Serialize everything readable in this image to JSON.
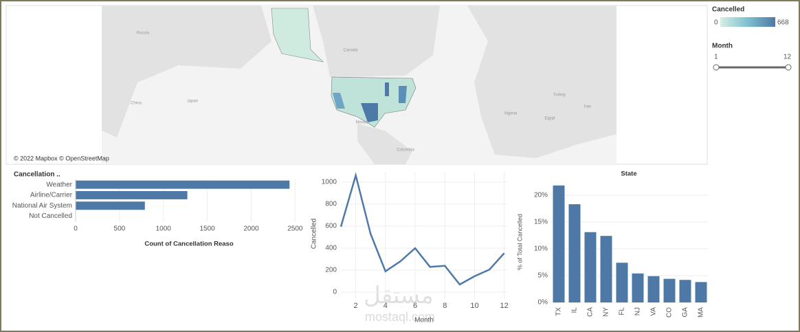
{
  "map": {
    "attribution": "© 2022 Mapbox © OpenStreetMap",
    "labels": [
      "Russia",
      "Canada",
      "China",
      "Japan",
      "Mexico",
      "Turkey",
      "Iran",
      "Egypt",
      "Algeria",
      "Colombia"
    ],
    "legend": {
      "title": "Cancelled",
      "min": 0,
      "max": 668
    }
  },
  "filter": {
    "title": "Month",
    "min": 1,
    "max": 12
  },
  "watermark": {
    "arabic": "مستقل",
    "latin": "mostaql.com"
  },
  "chart_data": [
    {
      "type": "hbar",
      "title": "Cancellation ..",
      "x_label": "Count of Cancellation Reaso",
      "categories": [
        "Weather",
        "Airline/Carrier",
        "National Air System",
        "Not Cancelled"
      ],
      "values": [
        2437,
        1273,
        789,
        0
      ],
      "color": "#4e79a7",
      "xlim": [
        0,
        2560
      ],
      "xticks": [
        0,
        500,
        1000,
        1500,
        2000,
        2500
      ],
      "grid": true
    },
    {
      "type": "line",
      "x_label": "Month",
      "y_label": "Cancelled",
      "x": [
        1,
        2,
        3,
        4,
        5,
        6,
        7,
        8,
        9,
        10,
        11,
        12
      ],
      "values": [
        595,
        1062,
        530,
        190,
        280,
        400,
        230,
        240,
        70,
        145,
        205,
        355
      ],
      "color": "#4e79a7",
      "xlim": [
        1,
        12.2
      ],
      "ylim": [
        -62,
        1094
      ],
      "xticks": [
        2,
        4,
        6,
        8,
        10,
        12
      ],
      "yticks": [
        0,
        200,
        400,
        600,
        800,
        1000
      ],
      "grid": true
    },
    {
      "type": "bar",
      "title": "State",
      "y_label": "% of Total Cancelled",
      "categories": [
        "TX",
        "IL",
        "CA",
        "NY",
        "FL",
        "NJ",
        "VA",
        "CO",
        "GA",
        "MA"
      ],
      "values": [
        21.8,
        18.3,
        13.1,
        12.4,
        7.4,
        5.4,
        4.9,
        4.4,
        4.2,
        3.8
      ],
      "color": "#4e79a7",
      "ylim": [
        0,
        22.8
      ],
      "yticks": [
        {
          "value": 0,
          "label": "0%"
        },
        {
          "value": 5,
          "label": "5%"
        },
        {
          "value": 10,
          "label": "10%"
        },
        {
          "value": 15,
          "label": "15%"
        },
        {
          "value": 20,
          "label": "20%"
        }
      ],
      "grid": true
    }
  ]
}
